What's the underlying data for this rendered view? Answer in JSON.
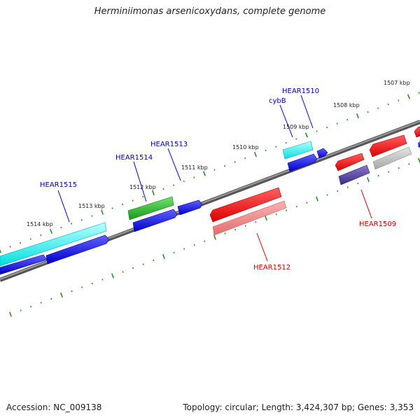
{
  "title": "Herminiimonas arsenicoxydans, complete genome",
  "footer": {
    "accession": "Accession: NC_009138",
    "summary": "Topology: circular; Length: 3,424,307 bp; Genes: 3,353"
  },
  "kbp_labels": [
    "1507 kbp",
    "1508 kbp",
    "1509 kbp",
    "1510 kbp",
    "1511 kbp",
    "1512 kbp",
    "1513 kbp",
    "1514 kbp"
  ],
  "gene_labels": {
    "hear1515": "HEAR1515",
    "hear1514": "HEAR1514",
    "hear1513": "HEAR1513",
    "hear1510": "HEAR1510",
    "cybB": "cybB",
    "hear1512": "HEAR1512",
    "hear1509": "HEAR1509"
  },
  "colors": {
    "forward_label": "#0000aa",
    "reverse_label": "#cc0000",
    "axis": "#777777",
    "tick": "#2e8b2e"
  }
}
